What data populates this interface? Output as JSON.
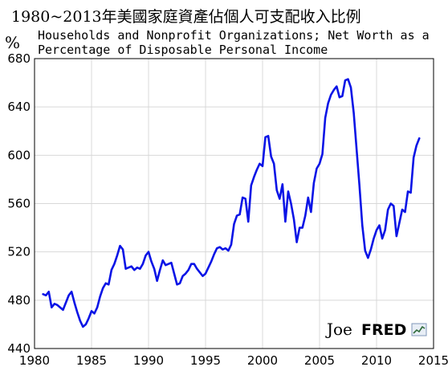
{
  "chart_data": {
    "type": "line",
    "title": "1980~2013年美國家庭資產佔個人可支配收入比例",
    "subtitle_lines": [
      "Households and Nonprofit Organizations; Net Worth as a",
      "Percentage of Disposable Personal Income"
    ],
    "ylabel": "%",
    "xlabel": "",
    "xlim": [
      1980,
      2015
    ],
    "ylim": [
      440,
      680
    ],
    "x_ticks": [
      "1980",
      "1985",
      "1990",
      "1995",
      "2000",
      "2005",
      "2010",
      "2015"
    ],
    "y_ticks": [
      "440",
      "480",
      "520",
      "560",
      "600",
      "640",
      "680"
    ],
    "grid": true,
    "line_color": "#0a14e6",
    "series": [
      {
        "x": [
          1980.75,
          1981,
          1981.25,
          1981.5,
          1981.75,
          1982,
          1982.25,
          1982.5,
          1982.75,
          1983,
          1983.25,
          1983.5,
          1983.75,
          1984,
          1984.25,
          1984.5,
          1984.75,
          1985,
          1985.25,
          1985.5,
          1985.75,
          1986,
          1986.25,
          1986.5,
          1986.75,
          1987,
          1987.25,
          1987.5,
          1987.75,
          1988,
          1988.25,
          1988.5,
          1988.75,
          1989,
          1989.25,
          1989.5,
          1989.75,
          1990,
          1990.25,
          1990.5,
          1990.75,
          1991,
          1991.25,
          1991.5,
          1991.75,
          1992,
          1992.25,
          1992.5,
          1992.75,
          1993,
          1993.25,
          1993.5,
          1993.75,
          1994,
          1994.25,
          1994.5,
          1994.75,
          1995,
          1995.25,
          1995.5,
          1995.75,
          1996,
          1996.25,
          1996.5,
          1996.75,
          1997,
          1997.25,
          1997.5,
          1997.75,
          1998,
          1998.25,
          1998.5,
          1998.75,
          1999,
          1999.25,
          1999.5,
          1999.75,
          2000,
          2000.25,
          2000.5,
          2000.75,
          2001,
          2001.25,
          2001.5,
          2001.75,
          2002,
          2002.25,
          2002.5,
          2002.75,
          2003,
          2003.25,
          2003.5,
          2003.75,
          2004,
          2004.25,
          2004.5,
          2004.75,
          2005,
          2005.25,
          2005.5,
          2005.75,
          2006,
          2006.25,
          2006.5,
          2006.75,
          2007,
          2007.25,
          2007.5,
          2007.75,
          2008,
          2008.25,
          2008.5,
          2008.75,
          2009,
          2009.25,
          2009.5,
          2009.75,
          2010,
          2010.25,
          2010.5,
          2010.75,
          2011,
          2011.25,
          2011.5,
          2011.75,
          2012,
          2012.25,
          2012.5,
          2012.75,
          2013,
          2013.25,
          2013.5,
          2013.75
        ],
        "y": [
          485,
          484,
          487,
          474,
          477,
          476,
          474,
          472,
          478,
          484,
          487,
          478,
          470,
          463,
          458,
          460,
          465,
          471,
          469,
          474,
          483,
          490,
          494,
          493,
          505,
          510,
          517,
          525,
          522,
          506,
          507,
          508,
          505,
          507,
          506,
          510,
          517,
          520,
          512,
          506,
          496,
          505,
          513,
          509,
          510,
          511,
          502,
          493,
          494,
          500,
          502,
          505,
          510,
          510,
          506,
          503,
          500,
          502,
          507,
          512,
          518,
          523,
          524,
          522,
          523,
          521,
          526,
          543,
          550,
          551,
          565,
          564,
          545,
          575,
          582,
          588,
          593,
          591,
          615,
          616,
          599,
          593,
          571,
          564,
          576,
          545,
          570,
          560,
          547,
          528,
          540,
          540,
          550,
          565,
          553,
          577,
          589,
          593,
          601,
          631,
          643,
          650,
          654,
          657,
          648,
          649,
          662,
          663,
          656,
          635,
          605,
          575,
          542,
          521,
          515,
          522,
          531,
          538,
          542,
          531,
          538,
          555,
          560,
          558,
          533,
          544,
          555,
          553,
          570,
          569,
          598,
          608,
          614
        ]
      }
    ],
    "annotations": {
      "watermark_text": "Joe",
      "logo_text": "FRED"
    }
  }
}
